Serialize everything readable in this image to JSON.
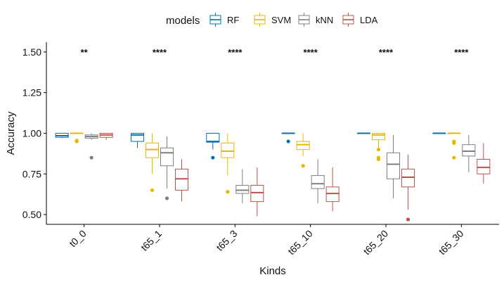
{
  "chart_data": {
    "type": "boxplot",
    "xlabel": "Kinds",
    "ylabel": "Accuracy",
    "ylim": [
      0.44,
      1.56
    ],
    "yticks": [
      0.5,
      0.75,
      1.0,
      1.25,
      1.5
    ],
    "ytick_labels": [
      "0.50",
      "0.75",
      "1.00",
      "1.25",
      "1.50"
    ],
    "categories": [
      "t0_0",
      "t65_1",
      "t65_3",
      "t65_10",
      "t65_20",
      "t65_30"
    ],
    "significance": [
      "**",
      "****",
      "****",
      "****",
      "****",
      "****"
    ],
    "significance_y": 1.5,
    "grid": false,
    "legend": {
      "title": "models",
      "position": "top"
    },
    "series": [
      {
        "name": "RF",
        "color": "#0072B2",
        "boxes": [
          {
            "min": 0.97,
            "q1": 0.975,
            "median": 0.985,
            "q3": 1.0,
            "max": 1.0,
            "outliers": []
          },
          {
            "min": 0.91,
            "q1": 0.95,
            "median": 0.99,
            "q3": 1.0,
            "max": 1.0,
            "outliers": []
          },
          {
            "min": 0.9,
            "q1": 0.945,
            "median": 0.95,
            "q3": 1.0,
            "max": 1.0,
            "outliers": [
              0.85
            ]
          },
          {
            "min": 1.0,
            "q1": 1.0,
            "median": 1.0,
            "q3": 1.0,
            "max": 1.0,
            "outliers": [
              0.95
            ]
          },
          {
            "min": 1.0,
            "q1": 1.0,
            "median": 1.0,
            "q3": 1.0,
            "max": 1.0,
            "outliers": []
          },
          {
            "min": 1.0,
            "q1": 1.0,
            "median": 1.0,
            "q3": 1.0,
            "max": 1.0,
            "outliers": []
          }
        ]
      },
      {
        "name": "SVM",
        "color": "#E6B800",
        "boxes": [
          {
            "min": 1.0,
            "q1": 1.0,
            "median": 1.0,
            "q3": 1.0,
            "max": 1.0,
            "outliers": [
              0.95,
              0.955
            ]
          },
          {
            "min": 0.75,
            "q1": 0.85,
            "median": 0.9,
            "q3": 0.94,
            "max": 1.0,
            "outliers": [
              0.65
            ]
          },
          {
            "min": 0.74,
            "q1": 0.85,
            "median": 0.89,
            "q3": 0.94,
            "max": 1.0,
            "outliers": [
              0.64
            ]
          },
          {
            "min": 0.86,
            "q1": 0.9,
            "median": 0.93,
            "q3": 0.95,
            "max": 1.0,
            "outliers": [
              0.8
            ]
          },
          {
            "min": 0.91,
            "q1": 0.96,
            "median": 0.99,
            "q3": 1.0,
            "max": 1.0,
            "outliers": [
              0.9,
              0.85,
              0.84
            ]
          },
          {
            "min": 1.0,
            "q1": 1.0,
            "median": 1.0,
            "q3": 1.0,
            "max": 1.0,
            "outliers": [
              0.95,
              0.94,
              0.85
            ]
          }
        ]
      },
      {
        "name": "kNN",
        "color": "#7F7F7F",
        "boxes": [
          {
            "min": 0.96,
            "q1": 0.97,
            "median": 0.98,
            "q3": 0.99,
            "max": 1.0,
            "outliers": [
              0.85
            ]
          },
          {
            "min": 0.66,
            "q1": 0.8,
            "median": 0.88,
            "q3": 0.91,
            "max": 0.98,
            "outliers": [
              0.6
            ]
          },
          {
            "min": 0.57,
            "q1": 0.63,
            "median": 0.65,
            "q3": 0.68,
            "max": 0.78,
            "outliers": []
          },
          {
            "min": 0.57,
            "q1": 0.66,
            "median": 0.69,
            "q3": 0.74,
            "max": 0.84,
            "outliers": []
          },
          {
            "min": 0.6,
            "q1": 0.72,
            "median": 0.81,
            "q3": 0.88,
            "max": 0.99,
            "outliers": []
          },
          {
            "min": 0.76,
            "q1": 0.86,
            "median": 0.89,
            "q3": 0.93,
            "max": 0.99,
            "outliers": []
          }
        ]
      },
      {
        "name": "LDA",
        "color": "#C0504D",
        "boxes": [
          {
            "min": 0.96,
            "q1": 0.975,
            "median": 0.99,
            "q3": 1.0,
            "max": 1.0,
            "outliers": []
          },
          {
            "min": 0.58,
            "q1": 0.65,
            "median": 0.72,
            "q3": 0.78,
            "max": 0.84,
            "outliers": []
          },
          {
            "min": 0.49,
            "q1": 0.58,
            "median": 0.635,
            "q3": 0.68,
            "max": 0.79,
            "outliers": []
          },
          {
            "min": 0.52,
            "q1": 0.58,
            "median": 0.63,
            "q3": 0.67,
            "max": 0.79,
            "outliers": []
          },
          {
            "min": 0.53,
            "q1": 0.67,
            "median": 0.73,
            "q3": 0.78,
            "max": 0.87,
            "outliers": [
              0.47
            ]
          },
          {
            "min": 0.69,
            "q1": 0.75,
            "median": 0.79,
            "q3": 0.84,
            "max": 0.94,
            "outliers": []
          }
        ]
      }
    ]
  }
}
